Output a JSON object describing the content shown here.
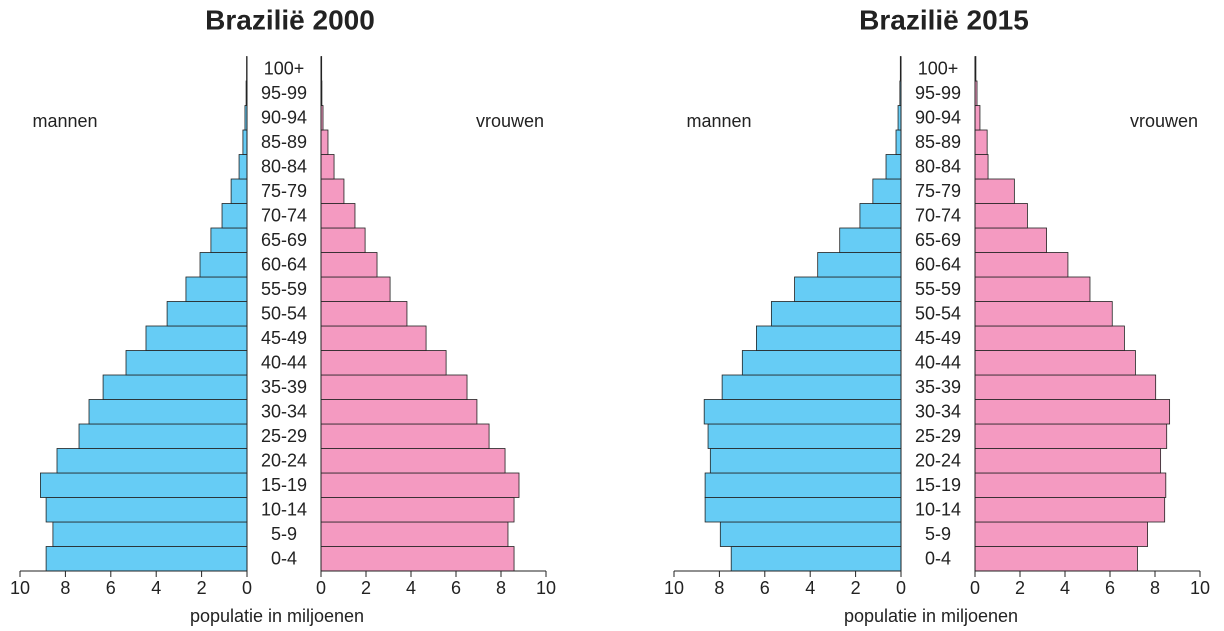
{
  "chart_data": [
    {
      "type": "pyramid",
      "title": "Brazilië 2000",
      "xlabel": "populatie in miljoenen",
      "categories": [
        "0-4",
        "5-9",
        "10-14",
        "15-19",
        "20-24",
        "25-29",
        "30-34",
        "35-39",
        "40-44",
        "45-49",
        "50-54",
        "55-59",
        "60-64",
        "65-69",
        "70-74",
        "75-79",
        "80-84",
        "85-89",
        "90-94",
        "95-99",
        "100+"
      ],
      "series": [
        {
          "name": "mannen",
          "color": "#66ccf5",
          "values": [
            8.85,
            8.55,
            8.85,
            9.1,
            8.37,
            7.4,
            6.96,
            6.34,
            5.33,
            4.45,
            3.52,
            2.69,
            2.07,
            1.59,
            1.1,
            0.7,
            0.35,
            0.18,
            0.09,
            0.04,
            0.02
          ]
        },
        {
          "name": "vrouwen",
          "color": "#f49ac1",
          "values": [
            8.58,
            8.31,
            8.58,
            8.8,
            8.18,
            7.47,
            6.93,
            6.49,
            5.56,
            4.67,
            3.82,
            3.07,
            2.49,
            1.96,
            1.51,
            1.02,
            0.58,
            0.31,
            0.09,
            0.04,
            0.03
          ]
        }
      ],
      "xlim": [
        0,
        10
      ],
      "xticks": [
        0,
        2,
        4,
        6,
        8,
        10
      ]
    },
    {
      "type": "pyramid",
      "title": "Brazilië 2015",
      "xlabel": "populatie in miljoenen",
      "categories": [
        "0-4",
        "5-9",
        "10-14",
        "15-19",
        "20-24",
        "25-29",
        "30-34",
        "35-39",
        "40-44",
        "45-49",
        "50-54",
        "55-59",
        "60-64",
        "65-69",
        "70-74",
        "75-79",
        "80-84",
        "85-89",
        "90-94",
        "95-99",
        "100+"
      ],
      "series": [
        {
          "name": "mannen",
          "color": "#66ccf5",
          "values": [
            7.48,
            7.96,
            8.63,
            8.63,
            8.4,
            8.5,
            8.67,
            7.88,
            6.99,
            6.37,
            5.71,
            4.69,
            3.67,
            2.7,
            1.81,
            1.24,
            0.66,
            0.22,
            0.13,
            0.05,
            0.03
          ]
        },
        {
          "name": "vrouwen",
          "color": "#f49ac1",
          "values": [
            7.22,
            7.67,
            8.43,
            8.48,
            8.25,
            8.52,
            8.65,
            8.03,
            7.13,
            6.64,
            6.1,
            5.11,
            4.13,
            3.18,
            2.33,
            1.75,
            0.58,
            0.54,
            0.22,
            0.09,
            0.04
          ]
        }
      ],
      "xlim": [
        0,
        10
      ],
      "xticks": [
        0,
        2,
        4,
        6,
        8,
        10
      ]
    }
  ]
}
